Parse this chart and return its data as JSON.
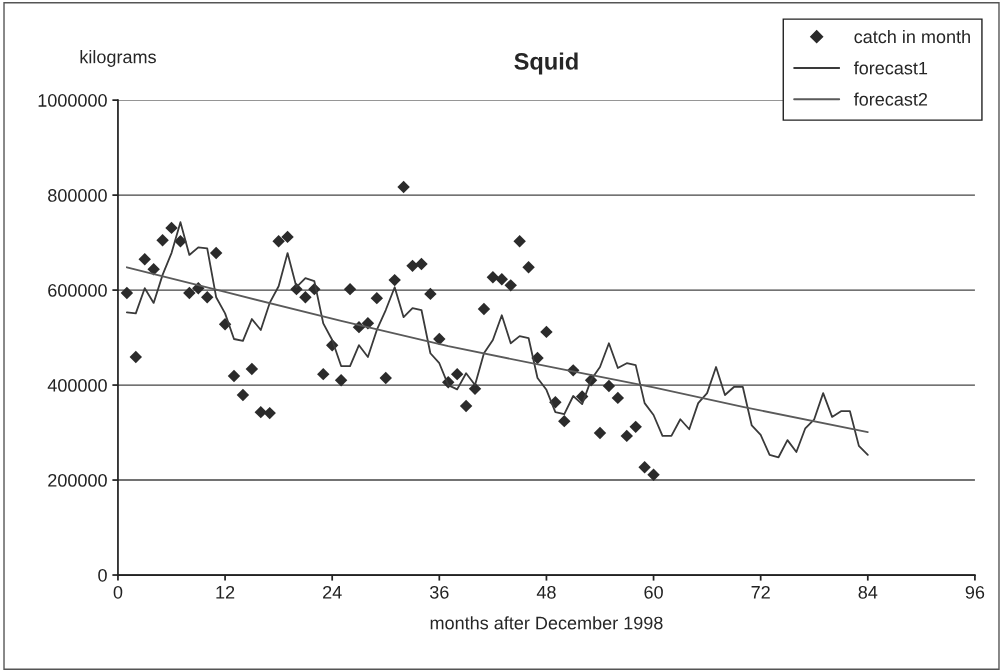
{
  "chart_data": {
    "type": "scatter",
    "title": "Squid",
    "xlabel": "months after December 1998",
    "ylabel": "kilograms",
    "xlim": [
      0,
      96
    ],
    "xticks": [
      0,
      12,
      24,
      36,
      48,
      60,
      72,
      84,
      96
    ],
    "ylim": [
      0,
      1000000
    ],
    "yticks": [
      0,
      200000,
      400000,
      600000,
      800000,
      1000000
    ],
    "grid": "y",
    "legend": "top right",
    "series": [
      {
        "name": "catch in month",
        "marker": "diamond",
        "color": "#2b2b2b",
        "x": [
          1,
          2,
          3,
          4,
          5,
          6,
          7,
          8,
          9,
          10,
          11,
          12,
          13,
          14,
          15,
          16,
          17,
          18,
          19,
          20,
          21,
          22,
          23,
          24,
          25,
          26,
          27,
          28,
          29,
          30,
          31,
          32,
          33,
          34,
          35,
          36,
          37,
          38,
          39,
          40,
          41,
          42,
          43,
          44,
          45,
          46,
          47,
          48,
          49,
          50,
          51,
          52,
          53,
          54,
          55,
          56,
          57,
          58,
          59,
          60
        ],
        "values": [
          594000,
          459000,
          665000,
          644000,
          705000,
          731000,
          703000,
          594000,
          604000,
          585000,
          678000,
          528000,
          419000,
          379000,
          434000,
          343000,
          341000,
          703000,
          712000,
          602000,
          585000,
          602000,
          423000,
          484000,
          410000,
          602000,
          522000,
          530000,
          583000,
          415000,
          621000,
          817000,
          651000,
          655000,
          592000,
          497000,
          406000,
          423000,
          356000,
          392000,
          560000,
          627000,
          623000,
          610000,
          703000,
          648000,
          457000,
          512000,
          364000,
          324000,
          431000,
          376000,
          410000,
          299000,
          398000,
          373000,
          293000,
          312000,
          227000,
          211000
        ]
      },
      {
        "name": "forecast1",
        "type": "line",
        "marker": "none",
        "color": "#3a3a3a",
        "x": [
          1,
          2,
          3,
          4,
          5,
          6,
          7,
          8,
          9,
          10,
          11,
          12,
          13,
          14,
          15,
          16,
          17,
          18,
          19,
          20,
          21,
          22,
          23,
          24,
          25,
          26,
          27,
          28,
          29,
          30,
          31,
          32,
          33,
          34,
          35,
          36,
          37,
          38,
          39,
          40,
          41,
          42,
          43,
          44,
          45,
          46,
          47,
          48,
          49,
          50,
          51,
          52,
          53,
          54,
          55,
          56,
          57,
          58,
          59,
          60,
          61,
          62,
          63,
          64,
          65,
          66,
          67,
          68,
          69,
          70,
          71,
          72,
          73,
          74,
          75,
          76,
          77,
          78,
          79,
          80,
          81,
          82,
          83,
          84
        ],
        "values": [
          553000,
          551000,
          604000,
          573000,
          632000,
          678000,
          743000,
          674000,
          690000,
          688000,
          585000,
          551000,
          497000,
          493000,
          539000,
          516000,
          573000,
          608000,
          678000,
          606000,
          625000,
          619000,
          530000,
          495000,
          440000,
          440000,
          484000,
          459000,
          516000,
          558000,
          606000,
          543000,
          562000,
          558000,
          467000,
          446000,
          400000,
          391000,
          425000,
          400000,
          467000,
          495000,
          547000,
          488000,
          503000,
          499000,
          415000,
          390000,
          343000,
          339000,
          377000,
          360000,
          411000,
          438000,
          488000,
          436000,
          446000,
          442000,
          362000,
          337000,
          293000,
          293000,
          328000,
          307000,
          362000,
          383000,
          438000,
          379000,
          396000,
          396000,
          315000,
          295000,
          253000,
          248000,
          284000,
          259000,
          309000,
          328000,
          383000,
          333000,
          345000,
          345000,
          272000,
          253000
        ]
      },
      {
        "name": "forecast2",
        "type": "line",
        "marker": "none",
        "color": "#5a5a5a",
        "x": [
          1,
          12,
          25,
          37,
          49,
          60,
          70,
          84
        ],
        "values": [
          648000,
          596000,
          535000,
          482000,
          436000,
          395000,
          354000,
          301000
        ]
      }
    ]
  }
}
